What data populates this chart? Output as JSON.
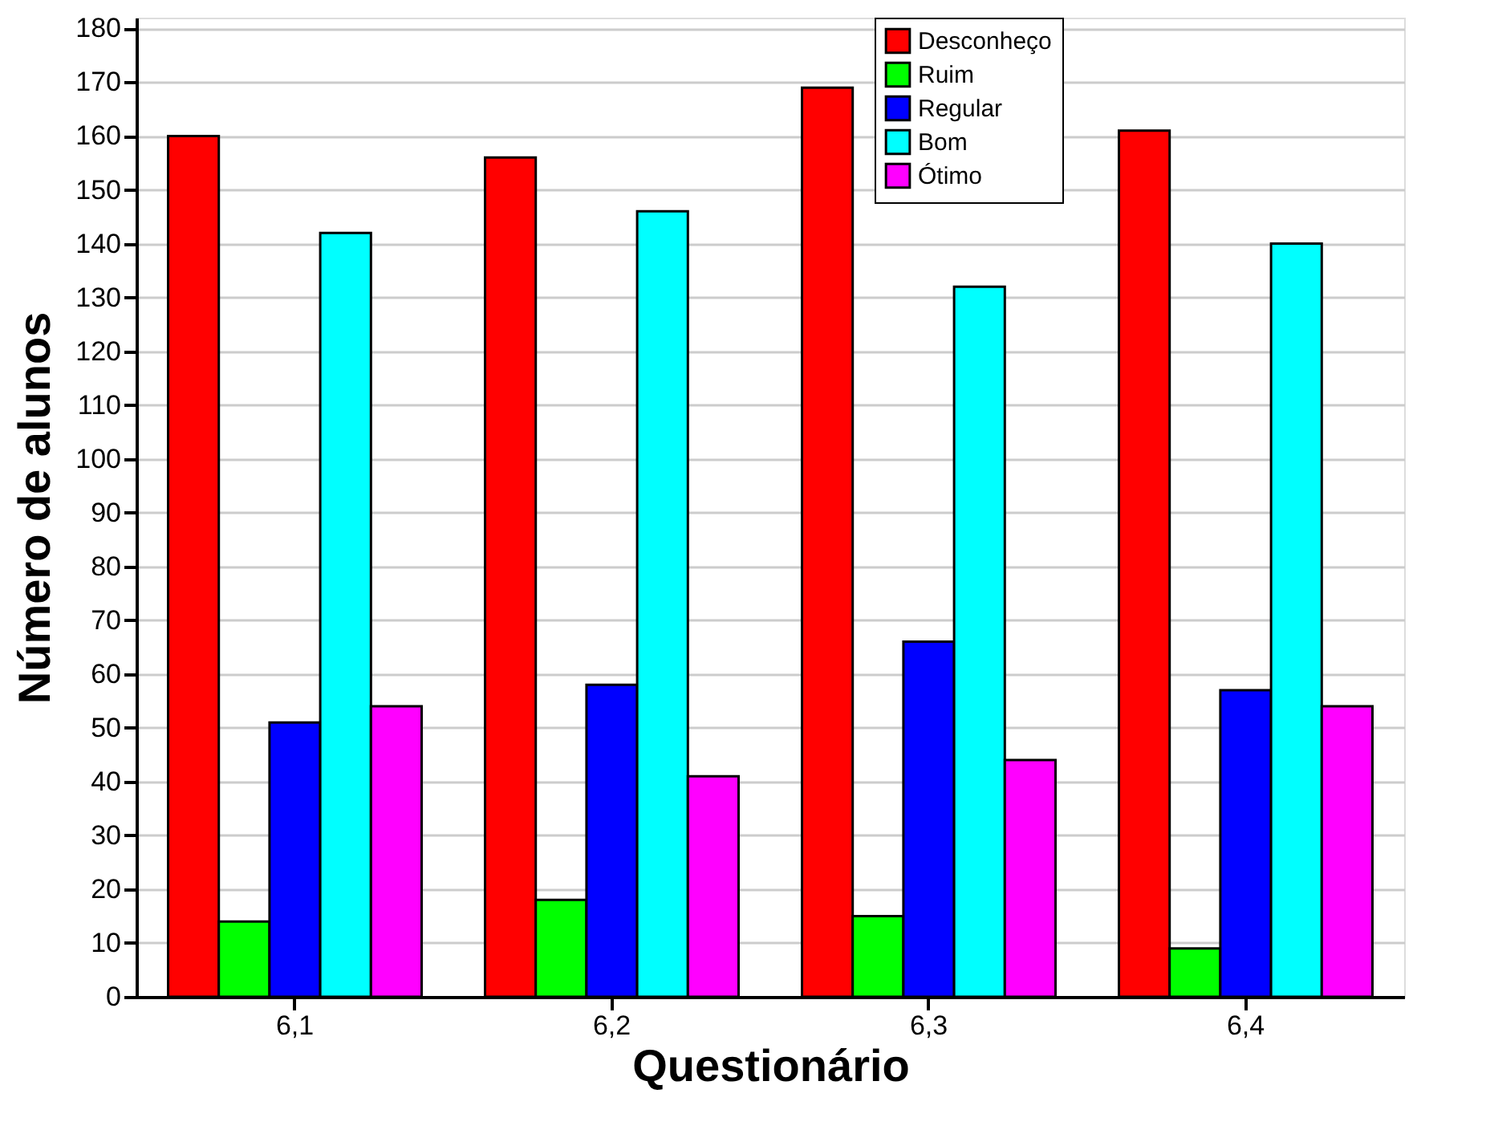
{
  "chart_data": {
    "type": "bar",
    "xlabel": "Questionário",
    "ylabel": "Número de alunos",
    "categories": [
      "6,1",
      "6,2",
      "6,3",
      "6,4"
    ],
    "series": [
      {
        "name": "Desconheço",
        "color": "#ff0000",
        "values": [
          160,
          156,
          169,
          161
        ]
      },
      {
        "name": "Ruim",
        "color": "#00ff00",
        "values": [
          14,
          18,
          15,
          9
        ]
      },
      {
        "name": "Regular",
        "color": "#0000ff",
        "values": [
          51,
          58,
          66,
          57
        ]
      },
      {
        "name": "Bom",
        "color": "#00ffff",
        "values": [
          142,
          146,
          132,
          140
        ]
      },
      {
        "name": "Ótimo",
        "color": "#ff00ff",
        "values": [
          54,
          41,
          44,
          54
        ]
      }
    ],
    "ylim": [
      0,
      182
    ],
    "yticks": [
      0,
      10,
      20,
      30,
      40,
      50,
      60,
      70,
      80,
      90,
      100,
      110,
      120,
      130,
      140,
      150,
      160,
      170,
      180
    ],
    "grid": "y",
    "legend": "top right"
  }
}
